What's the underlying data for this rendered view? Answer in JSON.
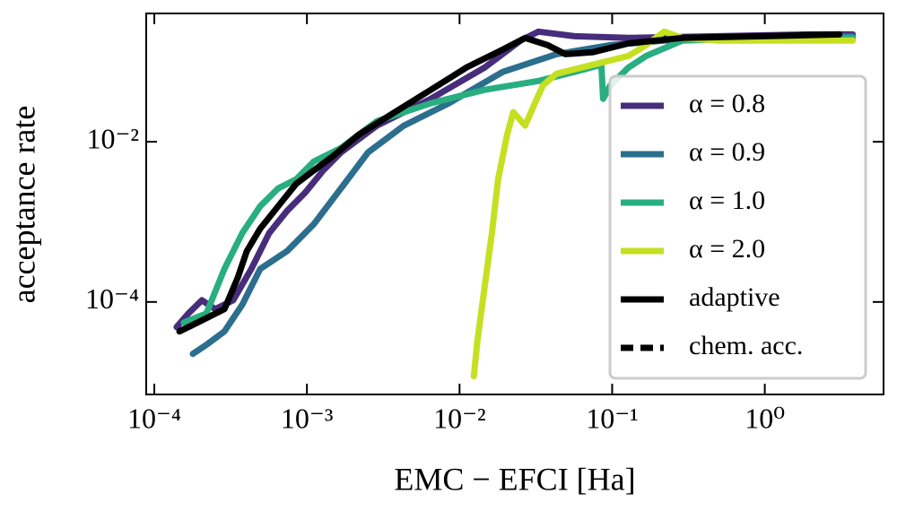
{
  "chart_data": {
    "type": "line",
    "xlabel": "EMC − EFCI [Ha]",
    "ylabel": "acceptance rate",
    "xscale": "log",
    "yscale": "log",
    "xlim": [
      8.85e-05,
      6.0
    ],
    "ylim": [
      7e-06,
      0.4
    ],
    "xticks": [
      {
        "value": 0.0001,
        "label": "10⁻⁴"
      },
      {
        "value": 0.001,
        "label": "10⁻³"
      },
      {
        "value": 0.01,
        "label": "10⁻²"
      },
      {
        "value": 0.1,
        "label": "10⁻¹"
      },
      {
        "value": 1,
        "label": "10⁰"
      }
    ],
    "yticks": [
      {
        "value": 0.0001,
        "label": "10⁻⁴"
      },
      {
        "value": 0.01,
        "label": "10⁻²"
      }
    ],
    "legend": "lower right",
    "series": [
      {
        "name": "α = 0.8",
        "color": "#472d7b",
        "x": [
          0.00014,
          0.000167,
          0.000205,
          0.000251,
          0.000329,
          0.000432,
          0.000566,
          0.000743,
          0.000973,
          0.00128,
          0.00167,
          0.00288,
          0.00648,
          0.0146,
          0.0251,
          0.0329,
          0.0566,
          0.128,
          0.494,
          1.92,
          3.77
        ],
        "values": [
          4.86e-05,
          7.16e-05,
          0.000105,
          8.14e-05,
          0.000105,
          0.000259,
          0.000725,
          0.00138,
          0.00231,
          0.00439,
          0.00735,
          0.0159,
          0.0344,
          0.0846,
          0.183,
          0.237,
          0.208,
          0.198,
          0.208,
          0.219,
          0.219
        ]
      },
      {
        "name": "α = 0.9",
        "color": "#2c6e8e",
        "x": [
          0.000179,
          0.000219,
          0.000288,
          0.000377,
          0.000494,
          0.000743,
          0.00111,
          0.00167,
          0.00251,
          0.00432,
          0.0085,
          0.0192,
          0.0432,
          0.0973,
          0.219,
          0.494,
          1.92,
          3.77
        ],
        "values": [
          2.25e-05,
          2.91e-05,
          4.28e-05,
          9.25e-05,
          0.000259,
          0.000433,
          0.000938,
          0.00262,
          0.00735,
          0.0159,
          0.0302,
          0.0745,
          0.124,
          0.161,
          0.183,
          0.198,
          0.208,
          0.208
        ]
      },
      {
        "name": "α = 1.0",
        "color": "#28ae80",
        "x": [
          0.000156,
          0.000219,
          0.000288,
          0.000377,
          0.000494,
          0.000648,
          0.00085,
          0.00111,
          0.00167,
          0.00288,
          0.00648,
          0.0146,
          0.0329,
          0.0566,
          0.085,
          0.0873,
          0.0973,
          0.128,
          0.167,
          0.288,
          0.973,
          3.77
        ],
        "values": [
          5.53e-05,
          7.16e-05,
          0.000259,
          0.000725,
          0.00157,
          0.00262,
          0.0034,
          0.00568,
          0.00835,
          0.0181,
          0.0302,
          0.0445,
          0.0575,
          0.0745,
          0.0914,
          0.0344,
          0.0506,
          0.0846,
          0.118,
          0.183,
          0.198,
          0.198
        ]
      },
      {
        "name": "α = 2.0",
        "color": "#c5e021",
        "x": [
          0.0124,
          0.0131,
          0.0146,
          0.0163,
          0.0179,
          0.0205,
          0.0225,
          0.0269,
          0.0321,
          0.0352,
          0.0432,
          0.0743,
          0.128,
          0.167,
          0.219,
          0.288,
          0.494,
          1.92,
          3.77
        ],
        "values": [
          1.18e-05,
          3.31e-05,
          0.000155,
          0.000725,
          0.0034,
          0.0123,
          0.0234,
          0.0159,
          0.0344,
          0.0506,
          0.0706,
          0.0914,
          0.118,
          0.161,
          0.237,
          0.198,
          0.183,
          0.183,
          0.183
        ]
      },
      {
        "name": "adaptive",
        "color": "#000000",
        "x": [
          0.000146,
          0.000192,
          0.000288,
          0.000352,
          0.000404,
          0.000494,
          0.000648,
          0.00085,
          0.00111,
          0.00146,
          0.00219,
          0.00377,
          0.00648,
          0.0111,
          0.0192,
          0.0269,
          0.0377,
          0.0494,
          0.0743,
          0.128,
          0.288,
          0.973,
          3.08
        ],
        "values": [
          4.28e-05,
          5.53e-05,
          8.14e-05,
          0.0002,
          0.000433,
          0.000824,
          0.00157,
          0.00299,
          0.00439,
          0.00646,
          0.0123,
          0.0234,
          0.0445,
          0.0846,
          0.142,
          0.198,
          0.161,
          0.124,
          0.131,
          0.169,
          0.198,
          0.208,
          0.219
        ]
      },
      {
        "name": "chem. acc.",
        "color": "#000000",
        "dashed": true,
        "x": [],
        "values": []
      }
    ]
  }
}
